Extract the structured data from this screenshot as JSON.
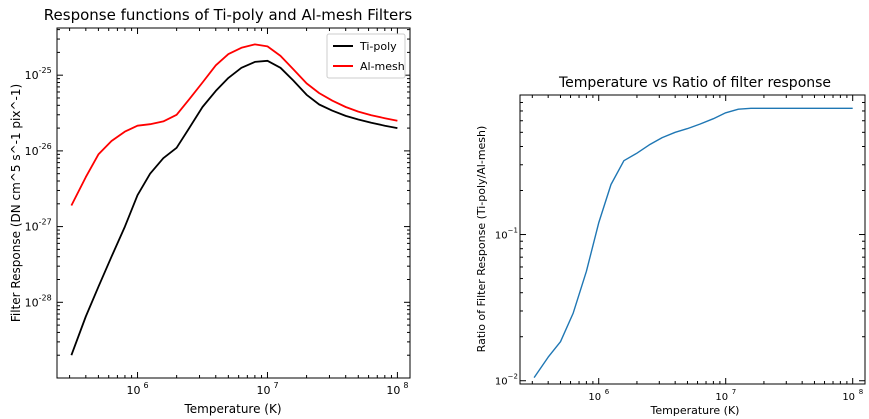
{
  "chart_data": [
    {
      "type": "line",
      "title": "Response functions of Ti-poly and Al-mesh Filters",
      "xlabel": "Temperature (K)",
      "ylabel": "Filter Response (DN cm^5 s^-1 pix^-1)",
      "xscale": "log",
      "yscale": "log",
      "xlim": [
        240000,
        125000000
      ],
      "ylim": [
        1e-29,
        4.2e-25
      ],
      "x_ticks": [
        {
          "exp": "6",
          "value": 1000000
        },
        {
          "exp": "7",
          "value": 10000000
        },
        {
          "exp": "8",
          "value": 100000000
        }
      ],
      "y_ticks": [
        {
          "exp": "-28",
          "value": 1e-28
        },
        {
          "exp": "-27",
          "value": 1e-27
        },
        {
          "exp": "-26",
          "value": 1e-26
        },
        {
          "exp": "-25",
          "value": 1e-25
        }
      ],
      "tick_base": "10",
      "legend_position": "upper-right",
      "grid": false,
      "series": [
        {
          "name": "Ti-poly",
          "color": "#000000",
          "x": [
            310000,
            400000,
            500000,
            630000,
            800000,
            1000000,
            1250000,
            1580000,
            2000000,
            2500000,
            3160000,
            4000000,
            5000000,
            6300000,
            8000000,
            10000000,
            12600000,
            15800000,
            20000000,
            25000000,
            31600000,
            40000000,
            50000000,
            63000000,
            80000000,
            100000000
          ],
          "values": [
            2e-29,
            6.5e-29,
            1.6e-28,
            4e-28,
            1e-27,
            2.6e-27,
            5e-27,
            8e-27,
            1.1e-26,
            2e-26,
            3.8e-26,
            6.2e-26,
            9.2e-26,
            1.25e-25,
            1.5e-25,
            1.55e-25,
            1.25e-25,
            8.5e-26,
            5.5e-26,
            4.1e-26,
            3.4e-26,
            2.9e-26,
            2.6e-26,
            2.35e-26,
            2.15e-26,
            2e-26
          ]
        },
        {
          "name": "Al-mesh",
          "color": "#ff0000",
          "x": [
            310000,
            400000,
            500000,
            630000,
            800000,
            1000000,
            1250000,
            1580000,
            2000000,
            2500000,
            3160000,
            4000000,
            5000000,
            6300000,
            8000000,
            10000000,
            12600000,
            15800000,
            20000000,
            25000000,
            31600000,
            40000000,
            50000000,
            63000000,
            80000000,
            100000000
          ],
          "values": [
            1.9e-27,
            4.5e-27,
            9e-27,
            1.35e-26,
            1.8e-26,
            2.15e-26,
            2.25e-26,
            2.45e-26,
            3e-26,
            4.8e-26,
            8e-26,
            1.35e-25,
            1.9e-25,
            2.3e-25,
            2.55e-25,
            2.4e-25,
            1.8e-25,
            1.2e-25,
            7.8e-26,
            5.8e-26,
            4.6e-26,
            3.8e-26,
            3.3e-26,
            2.95e-26,
            2.7e-26,
            2.5e-26
          ]
        }
      ]
    },
    {
      "type": "line",
      "title": "Temperature vs Ratio of filter response",
      "xlabel": "Temperature (K)",
      "ylabel": "Ratio of Filter Response (Ti-poly/Al-mesh)",
      "xscale": "log",
      "yscale": "log",
      "xlim": [
        240000,
        125000000
      ],
      "ylim": [
        0.0095,
        0.9
      ],
      "x_ticks": [
        {
          "exp": "6",
          "value": 1000000
        },
        {
          "exp": "7",
          "value": 10000000
        },
        {
          "exp": "8",
          "value": 100000000
        }
      ],
      "y_ticks": [
        {
          "exp": "−2",
          "value": 0.01
        },
        {
          "exp": "−1",
          "value": 0.1
        }
      ],
      "tick_base": "10",
      "grid": false,
      "series": [
        {
          "color": "#1f77b4",
          "x": [
            310000,
            400000,
            500000,
            630000,
            800000,
            1000000,
            1250000,
            1580000,
            2000000,
            2500000,
            3160000,
            4000000,
            5000000,
            6300000,
            8000000,
            10000000,
            12600000,
            15800000,
            20000000,
            25000000,
            31600000,
            40000000,
            50000000,
            63000000,
            80000000,
            100000000
          ],
          "values": [
            0.0105,
            0.0145,
            0.0185,
            0.029,
            0.056,
            0.12,
            0.22,
            0.32,
            0.36,
            0.41,
            0.46,
            0.5,
            0.53,
            0.57,
            0.62,
            0.68,
            0.72,
            0.73,
            0.73,
            0.73,
            0.73,
            0.73,
            0.73,
            0.73,
            0.73,
            0.73
          ]
        }
      ]
    }
  ]
}
